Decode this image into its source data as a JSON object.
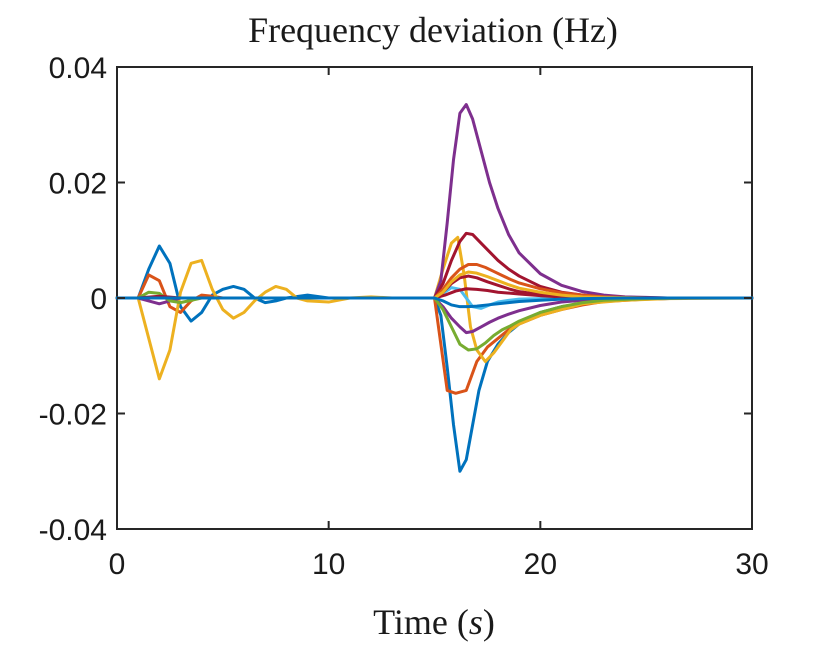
{
  "chart_data": {
    "type": "line",
    "title": "Frequency deviation (Hz)",
    "xlabel_text": "Time (",
    "xlabel_var": "s",
    "xlabel_close": ")",
    "ylabel": "",
    "xlim": [
      0,
      30
    ],
    "ylim": [
      -0.04,
      0.04
    ],
    "xticks": [
      0,
      10,
      20,
      30
    ],
    "xtick_labels": [
      "0",
      "10",
      "20",
      "30"
    ],
    "yticks": [
      -0.04,
      -0.02,
      0,
      0.02,
      0.04
    ],
    "ytick_labels": [
      "-0.04",
      "-0.02",
      "0",
      "0.02",
      "0.04"
    ],
    "grid": false,
    "series": [
      {
        "name": "blue",
        "color": "#0072BD",
        "x": [
          0,
          1,
          1.5,
          2,
          2.5,
          3,
          3.5,
          4,
          4.5,
          5,
          5.5,
          6,
          6.5,
          7,
          7.5,
          8,
          9,
          10,
          11,
          12,
          13,
          14,
          15,
          15.3,
          15.6,
          15.9,
          16.2,
          16.5,
          16.8,
          17.1,
          17.5,
          18,
          18.5,
          19,
          20,
          21,
          22,
          23,
          25,
          27,
          30
        ],
        "y": [
          0,
          0,
          0.005,
          0.009,
          0.006,
          -0.0015,
          -0.004,
          -0.0025,
          0.0005,
          0.0015,
          0.002,
          0.0015,
          0,
          -0.0008,
          -0.0005,
          0,
          0.0005,
          0,
          0,
          0,
          0,
          0,
          0,
          -0.003,
          -0.012,
          -0.022,
          -0.03,
          -0.028,
          -0.022,
          -0.016,
          -0.011,
          -0.008,
          -0.006,
          -0.0045,
          -0.0025,
          -0.0015,
          -0.001,
          -0.0005,
          -0.0002,
          0,
          0
        ]
      },
      {
        "name": "orange",
        "color": "#D95319",
        "x": [
          0,
          1,
          1.5,
          2,
          2.5,
          3,
          3.5,
          4,
          4.5,
          5,
          6,
          8,
          10,
          12,
          15,
          15.3,
          15.6,
          16,
          16.5,
          17,
          17.5,
          18,
          18.5,
          19,
          20,
          21,
          22,
          23,
          25,
          27,
          30
        ],
        "y": [
          0,
          0,
          0.004,
          0.003,
          -0.0015,
          -0.0025,
          -0.0005,
          0.0005,
          0.0003,
          0,
          0,
          0,
          0,
          0,
          0,
          -0.008,
          -0.016,
          -0.0165,
          -0.016,
          -0.011,
          -0.0085,
          -0.007,
          -0.0055,
          -0.0045,
          -0.003,
          -0.002,
          -0.0012,
          -0.0006,
          -0.0002,
          0,
          0
        ]
      },
      {
        "name": "yellow",
        "color": "#EDB120",
        "x": [
          0,
          1,
          1.5,
          2,
          2.5,
          3,
          3.5,
          4,
          4.5,
          5,
          5.5,
          6,
          6.5,
          7,
          7.5,
          8,
          8.5,
          9,
          10,
          11,
          12,
          13,
          14,
          15,
          15.4,
          15.8,
          16.1,
          16.4,
          16.7,
          17.0,
          17.4,
          17.8,
          18.2,
          18.6,
          19,
          20,
          21,
          22,
          24,
          26,
          30
        ],
        "y": [
          0,
          0,
          -0.007,
          -0.014,
          -0.009,
          0.001,
          0.006,
          0.0065,
          0.0015,
          -0.002,
          -0.0035,
          -0.0025,
          -0.0005,
          0.001,
          0.002,
          0.0015,
          0,
          -0.0005,
          -0.0007,
          0,
          0.0002,
          0,
          0,
          0,
          0.005,
          0.0095,
          0.0105,
          0.004,
          -0.005,
          -0.009,
          -0.011,
          -0.0095,
          -0.0075,
          -0.0055,
          -0.0045,
          -0.003,
          -0.002,
          -0.001,
          -0.0004,
          -0.0001,
          0
        ]
      },
      {
        "name": "purple",
        "color": "#7E2F8E",
        "x": [
          0,
          1,
          1.5,
          2,
          2.5,
          3,
          4,
          5,
          10,
          15,
          15.3,
          15.6,
          15.9,
          16.2,
          16.5,
          16.8,
          17.2,
          17.6,
          18,
          18.5,
          19,
          20,
          21,
          22,
          23,
          24,
          25,
          26,
          28,
          30
        ],
        "y": [
          0,
          0,
          -0.0005,
          -0.001,
          -0.0005,
          0,
          0,
          0,
          0,
          0,
          0.003,
          0.013,
          0.024,
          0.032,
          0.0335,
          0.031,
          0.0255,
          0.02,
          0.0155,
          0.011,
          0.0078,
          0.0042,
          0.0022,
          0.0011,
          0.0005,
          0.0002,
          0.0001,
          0,
          0,
          0
        ]
      },
      {
        "name": "purple-neg",
        "color": "#7E2F8E",
        "x": [
          0,
          15,
          15.4,
          15.8,
          16.2,
          16.5,
          16.8,
          17.2,
          17.6,
          18,
          18.5,
          19,
          20,
          21,
          22,
          23,
          25,
          27,
          30
        ],
        "y": [
          0,
          0,
          -0.0015,
          -0.0035,
          -0.005,
          -0.006,
          -0.0058,
          -0.005,
          -0.0042,
          -0.0035,
          -0.0028,
          -0.0022,
          -0.0013,
          -0.0007,
          -0.0004,
          -0.0002,
          0,
          0,
          0
        ]
      },
      {
        "name": "green",
        "color": "#77AC30",
        "x": [
          0,
          1,
          1.5,
          2,
          2.5,
          3,
          4,
          5,
          10,
          15,
          15.4,
          15.8,
          16.2,
          16.6,
          17,
          17.4,
          17.8,
          18.2,
          18.6,
          19,
          20,
          21,
          22,
          23,
          25,
          27,
          30
        ],
        "y": [
          0,
          0,
          0.001,
          0.0008,
          -0.0005,
          -0.0008,
          0,
          0,
          0,
          0,
          -0.002,
          -0.005,
          -0.008,
          -0.009,
          -0.0088,
          -0.0078,
          -0.0065,
          -0.0055,
          -0.0048,
          -0.004,
          -0.0025,
          -0.0015,
          -0.0008,
          -0.0004,
          -0.0001,
          0,
          0
        ]
      },
      {
        "name": "cyan",
        "color": "#4DBEEE",
        "x": [
          0,
          15,
          15.4,
          15.8,
          16.2,
          16.5,
          16.8,
          17.2,
          17.6,
          18,
          18.5,
          19,
          20,
          21,
          22,
          24,
          30
        ],
        "y": [
          0,
          0,
          0.0008,
          0.0018,
          0.0015,
          0,
          -0.0015,
          -0.0018,
          -0.0012,
          -0.0007,
          -0.0004,
          -0.0002,
          -0.0001,
          0,
          0,
          0,
          0
        ]
      },
      {
        "name": "red",
        "color": "#A2142F",
        "x": [
          0,
          1,
          2,
          3,
          4,
          10,
          15,
          15.4,
          15.8,
          16.2,
          16.5,
          16.8,
          17.2,
          17.6,
          18,
          18.5,
          19,
          20,
          21,
          22,
          23,
          24,
          26,
          30
        ],
        "y": [
          0,
          0,
          0.0003,
          0,
          0,
          0,
          0,
          0.0025,
          0.0065,
          0.0098,
          0.0112,
          0.011,
          0.0095,
          0.008,
          0.0065,
          0.005,
          0.0038,
          0.002,
          0.001,
          0.0005,
          0.0002,
          0.0001,
          0,
          0
        ]
      },
      {
        "name": "red-2",
        "color": "#A2142F",
        "x": [
          0,
          15,
          15.4,
          15.8,
          16.2,
          16.6,
          17,
          17.5,
          18,
          18.5,
          19,
          20,
          21,
          22,
          24,
          30
        ],
        "y": [
          0,
          0,
          0.001,
          0.0025,
          0.0035,
          0.0038,
          0.0035,
          0.0028,
          0.0022,
          0.0016,
          0.0011,
          0.0006,
          0.0003,
          0.0001,
          0,
          0
        ]
      },
      {
        "name": "red-3",
        "color": "#A2142F",
        "x": [
          0,
          15,
          15.5,
          16,
          16.5,
          17,
          17.5,
          18,
          19,
          20,
          21,
          22,
          24,
          30
        ],
        "y": [
          0,
          0,
          0.0005,
          0.0012,
          0.0016,
          0.0015,
          0.0013,
          0.001,
          0.0007,
          0.0004,
          0.0002,
          0.0001,
          0,
          0
        ]
      },
      {
        "name": "orange-2",
        "color": "#D95319",
        "x": [
          0,
          15,
          15.4,
          15.8,
          16.2,
          16.6,
          17,
          17.4,
          17.8,
          18.2,
          18.6,
          19,
          20,
          21,
          22,
          23,
          25,
          30
        ],
        "y": [
          0,
          0,
          0.0015,
          0.0035,
          0.005,
          0.0058,
          0.0058,
          0.0053,
          0.0046,
          0.0039,
          0.0032,
          0.0026,
          0.0016,
          0.0009,
          0.0005,
          0.0002,
          0,
          0
        ]
      },
      {
        "name": "yellow-2",
        "color": "#EDB120",
        "x": [
          0,
          15,
          15.4,
          15.8,
          16.2,
          16.6,
          17,
          17.5,
          18,
          18.5,
          19,
          20,
          21,
          22,
          23,
          25,
          30
        ],
        "y": [
          0,
          0,
          0.001,
          0.0028,
          0.004,
          0.0045,
          0.0043,
          0.0037,
          0.003,
          0.0023,
          0.0017,
          0.001,
          0.0005,
          0.0002,
          0.0001,
          0,
          0
        ]
      },
      {
        "name": "blue-neg-2",
        "color": "#0072BD",
        "x": [
          0,
          15,
          15.4,
          15.8,
          16.2,
          16.6,
          17,
          17.5,
          18,
          18.5,
          19,
          20,
          21,
          22,
          24,
          30
        ],
        "y": [
          0,
          0,
          -0.0005,
          -0.0012,
          -0.0015,
          -0.0015,
          -0.0014,
          -0.0012,
          -0.001,
          -0.0008,
          -0.0006,
          -0.0004,
          -0.0002,
          -0.0001,
          0,
          0
        ]
      }
    ]
  }
}
